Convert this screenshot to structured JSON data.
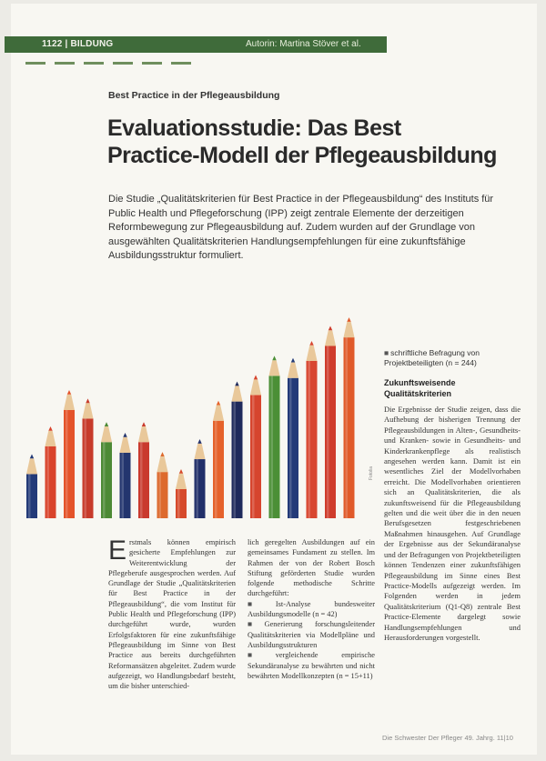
{
  "header": {
    "page_section": "1122 | BILDUNG",
    "author": "Autorin: Martina Stöver et al."
  },
  "article": {
    "kicker": "Best Practice in der Pflegeausbildung",
    "title_line1": "Evaluationsstudie: Das Best",
    "title_line2": "Practice-Modell der Pflegeausbildung",
    "lead": "Die Studie „Qualitätskriterien für Best Practice in der Pflegeausbildung“ des Instituts für Public Health und Pflegeforschung (IPP) zeigt zentrale Elemente der derzeitigen Reformbewegung zur Pflegeausbildung auf. Zudem wurden auf der Grundlage von ausgewählten Qualitätskriterien Handlungsempfehlungen für eine zukunftsfähige Ausbildungsstruktur formuliert.",
    "col1_dropcap": "E",
    "col1_text": "rstmals können empirisch gesicherte Empfehlungen zur Weiterentwicklung der Pflegeberufe ausgesprochen werden. Auf Grundlage der Studie „Qualitätskriterien für Best Practice in der Pflegeausbildung“, die vom Institut für Public Health und Pflegeforschung (IPP) durchgeführt wurde, wurden Erfolgsfaktoren für eine zukunftsfähige Pflegeausbildung im Sinne von Best Practice aus bereits durchgeführten Reformansätzen abgeleitet. Zudem wurde aufgezeigt, wo Handlungsbedarf besteht, um die bisher unterschied-",
    "col2_intro": "lich geregelten Ausbildungen auf ein gemeinsames Fundament zu stellen. Im Rahmen der von der Robert Bosch Stiftung geförderten Studie wurden folgende methodische Schritte durchgeführt:",
    "col2_bullets": [
      "Ist-Analyse bundesweiter Ausbildungsmodelle (n = 42)",
      "Generierung forschungsleitender Qualitätskriterien via Modellpläne und Ausbildungsstrukturen",
      "vergleichende empirische Sekundäranalyse zu bewährten und nicht bewährten Modellkonzepten (n = 15+11)"
    ],
    "sidebar_bullet": "schriftliche Befragung von Projektbeteiligten (n = 244)",
    "sidebar_heading_line1": "Zukunftsweisende",
    "sidebar_heading_line2": "Qualitätskriterien",
    "sidebar_text": "Die Ergebnisse der Studie zeigen, dass die Aufhebung der bisherigen Trennung der Pflegeausbildungen in Alten-, Gesundheits- und Kranken- sowie in Gesundheits- und Kinderkrankenpflege als realistisch angesehen werden kann. Damit ist ein wesentliches Ziel der Modellvorhaben erreicht. Die Modellvorhaben orientieren sich an Qualitätskriterien, die als zukunftsweisend für die Pflegeausbildung gelten und die weit über die in den neuen Berufsgesetzen festgeschriebenen Maßnahmen hinausgehen. Auf Grundlage der Ergebnisse aus der Sekundäranalyse und der Befragungen von Projektbeteiligten können Tendenzen einer zukunftsfähigen Pflegeausbildung im Sinne eines Best Practice-Modells aufgezeigt werden. Im Folgenden werden in jedem Qualitätskriterium (Q1-Q8) zentrale Best Practice-Elemente dargelegt sowie Handlungsempfehlungen und Herausforderungen vorgestellt.",
    "image_credit": "Fotolia",
    "footer": "Die Schwester Der Pfleger 49. Jahrg. 11|10"
  },
  "chart_data": {
    "type": "illustration",
    "pencil_heights": [
      0.3,
      0.43,
      0.6,
      0.56,
      0.45,
      0.4,
      0.45,
      0.31,
      0.23,
      0.37,
      0.55,
      0.64,
      0.67,
      0.76,
      0.75,
      0.83,
      0.9,
      0.94
    ],
    "pencil_colors": [
      "#233a78",
      "#d9432b",
      "#e4532a",
      "#c73b2b",
      "#4d8a35",
      "#23356e",
      "#c93a2e",
      "#dd6a2d",
      "#d64a2b",
      "#22306a",
      "#e5622b",
      "#1f2a5c",
      "#d6452e",
      "#4b8f36",
      "#233a78",
      "#d84630",
      "#cf3c2c",
      "#e05a2a"
    ]
  }
}
